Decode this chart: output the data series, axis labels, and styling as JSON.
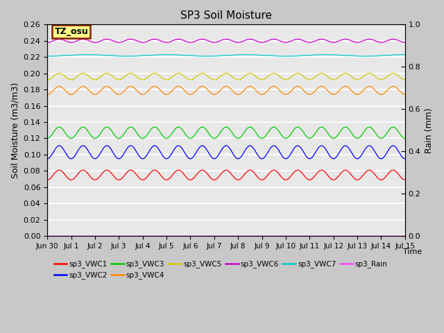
{
  "title": "SP3 Soil Moisture",
  "xlabel": "Time",
  "ylabel_left": "Soil Moisture (m3/m3)",
  "ylabel_right": "Rain (mm)",
  "ylim_left": [
    0.0,
    0.26
  ],
  "ylim_right": [
    0.0,
    1.0
  ],
  "yticks_left": [
    0.0,
    0.02,
    0.04,
    0.06,
    0.08,
    0.1,
    0.12,
    0.14,
    0.16,
    0.18,
    0.2,
    0.22,
    0.24,
    0.26
  ],
  "yticks_right": [
    0.0,
    0.2,
    0.4,
    0.6,
    0.8,
    1.0
  ],
  "xtick_labels": [
    "Jun 30",
    "Jul 1",
    "Jul 2",
    "Jul 3",
    "Jul 4",
    "Jul 5",
    "Jul 6",
    "Jul 7",
    "Jul 8",
    "Jul 9",
    "Jul 10",
    "Jul 11",
    "Jul 12",
    "Jul 13",
    "Jul 14",
    "Jul 15"
  ],
  "annotation_text": "TZ_osu",
  "annotation_bg": "#ffff88",
  "annotation_border": "#8B1a00",
  "plot_bg": "#e8e8e8",
  "fig_bg": "#c8c8c8",
  "series": [
    {
      "name": "sp3_VWC1",
      "color": "#ff0000",
      "base": 0.075,
      "amp": 0.006,
      "freq": 1.0,
      "axis": "left"
    },
    {
      "name": "sp3_VWC2",
      "color": "#0000ff",
      "base": 0.103,
      "amp": 0.008,
      "freq": 1.0,
      "axis": "left"
    },
    {
      "name": "sp3_VWC3",
      "color": "#00cc00",
      "base": 0.127,
      "amp": 0.007,
      "freq": 1.0,
      "axis": "left"
    },
    {
      "name": "sp3_VWC4",
      "color": "#ff8800",
      "base": 0.179,
      "amp": 0.005,
      "freq": 1.0,
      "axis": "left"
    },
    {
      "name": "sp3_VWC5",
      "color": "#cccc00",
      "base": 0.196,
      "amp": 0.004,
      "freq": 1.0,
      "axis": "left"
    },
    {
      "name": "sp3_VWC6",
      "color": "#cc00cc",
      "base": 0.24,
      "amp": 0.002,
      "freq": 1.0,
      "axis": "left"
    },
    {
      "name": "sp3_VWC7",
      "color": "#00cccc",
      "base": 0.222,
      "amp": 0.001,
      "freq": 0.3,
      "axis": "left"
    },
    {
      "name": "sp3_Rain",
      "color": "#ff44ff",
      "base": 0.0,
      "amp": 0.0,
      "freq": 0.0,
      "axis": "right"
    }
  ],
  "legend_names_row1": [
    "sp3_VWC1",
    "sp3_VWC2",
    "sp3_VWC3",
    "sp3_VWC4",
    "sp3_VWC5",
    "sp3_VWC6"
  ],
  "legend_colors_row1": [
    "#ff0000",
    "#0000ff",
    "#00cc00",
    "#ff8800",
    "#cccc00",
    "#cc00cc"
  ],
  "legend_names_row2": [
    "sp3_VWC7",
    "sp3_Rain"
  ],
  "legend_colors_row2": [
    "#00cccc",
    "#ff44ff"
  ],
  "n_days": 15,
  "points_per_day": 144
}
